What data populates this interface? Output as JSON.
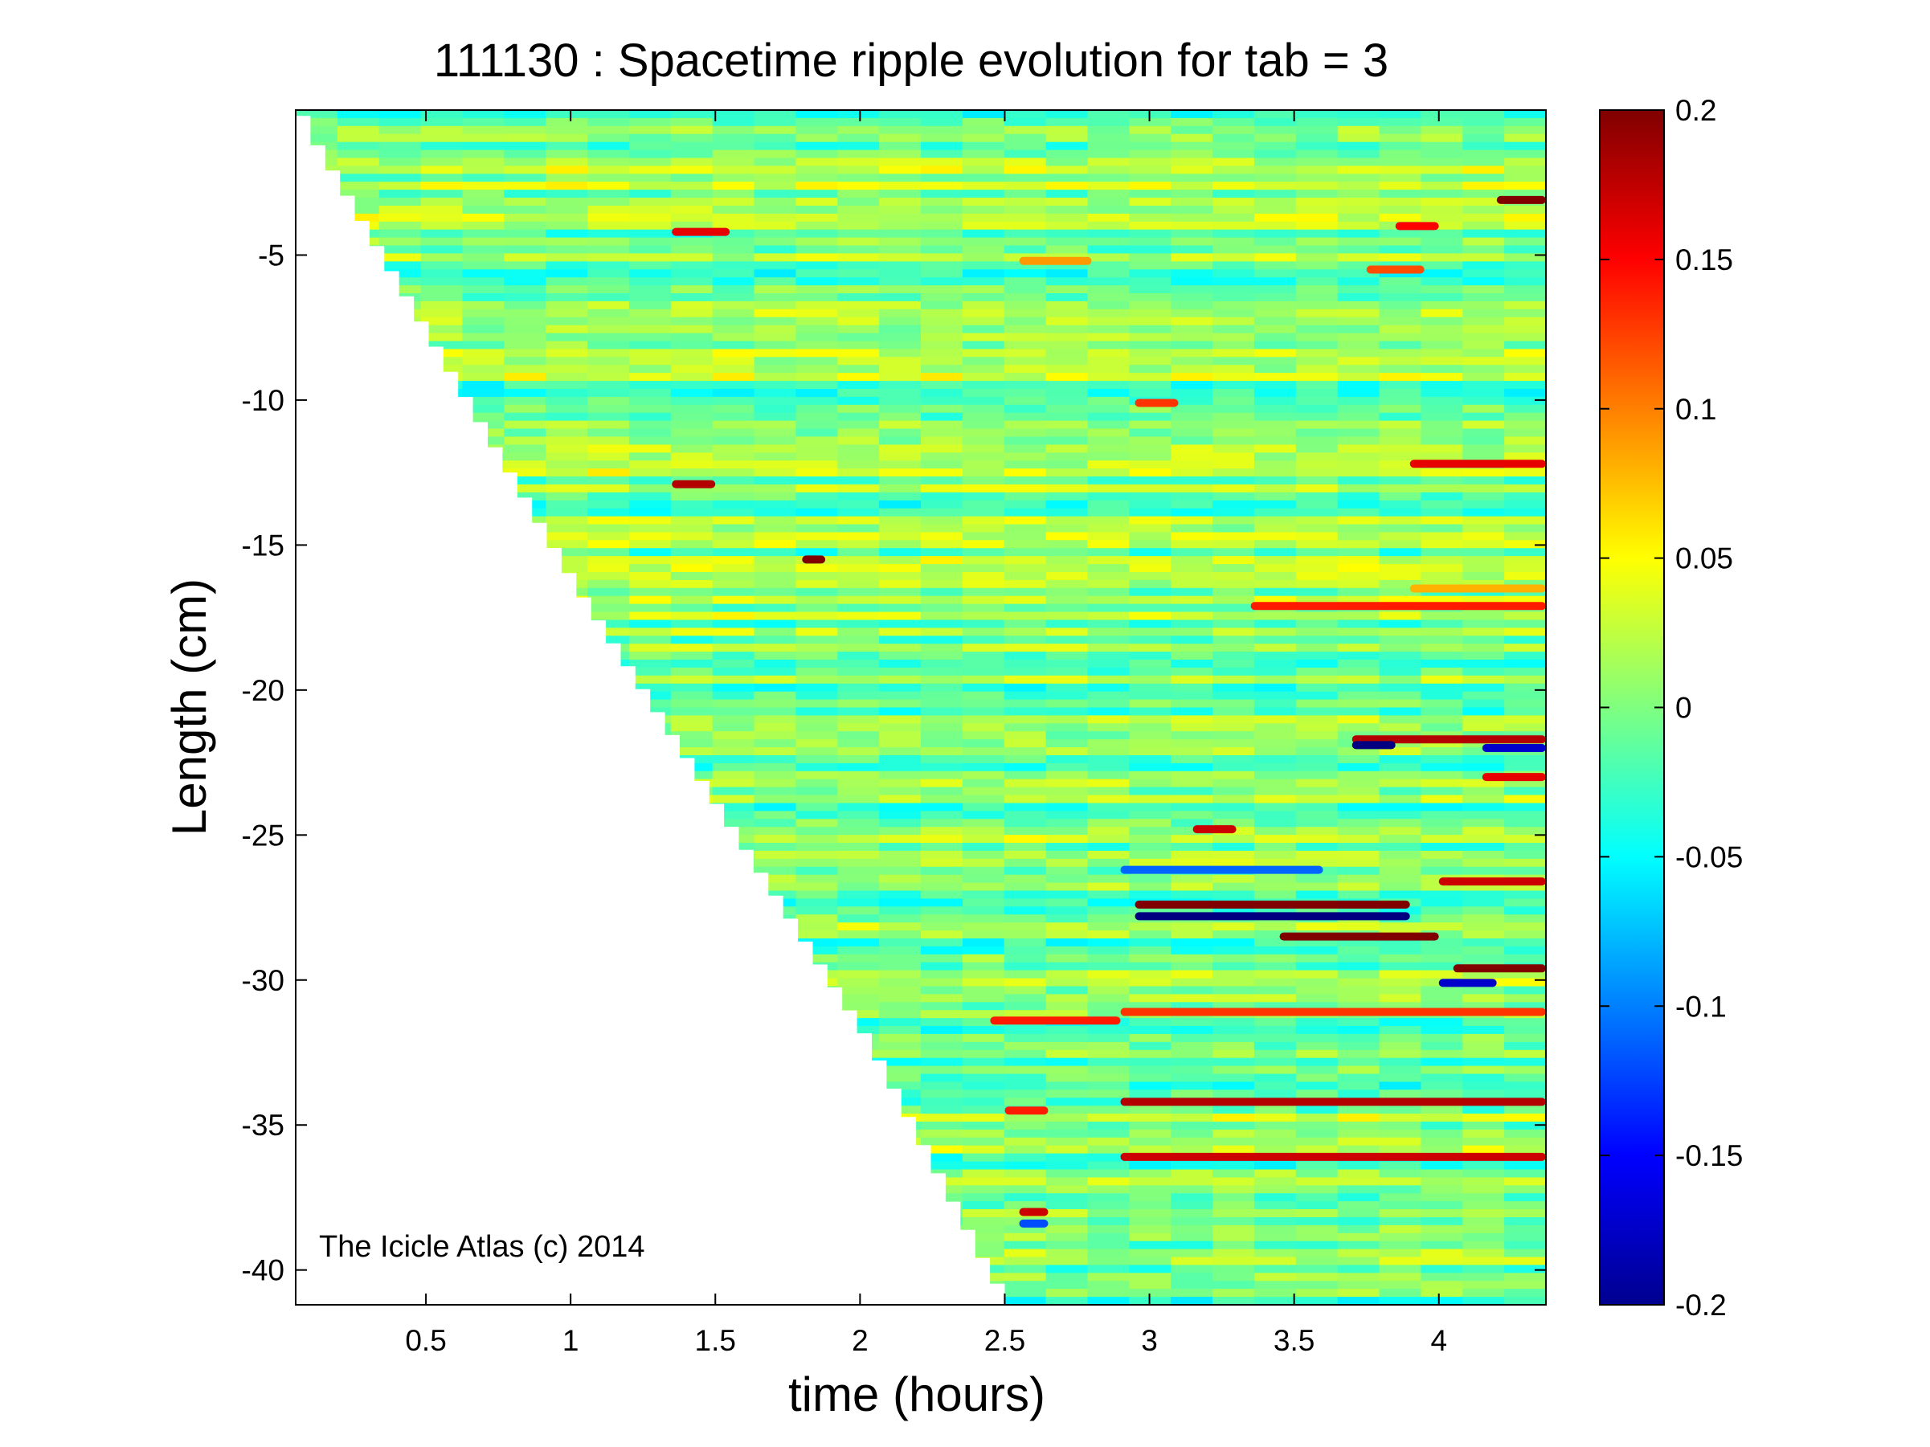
{
  "chart_data": {
    "type": "heatmap",
    "title": "111130 : Spacetime ripple evolution for tab = 3",
    "xlabel": "time (hours)",
    "ylabel": "Length (cm)",
    "xlim": [
      0.05,
      4.37
    ],
    "ylim": [
      -41.2,
      0
    ],
    "xticks": [
      0.5,
      1,
      1.5,
      2,
      2.5,
      3,
      3.5,
      4
    ],
    "xtick_labels": [
      "0.5",
      "1",
      "1.5",
      "2",
      "2.5",
      "3",
      "3.5",
      "4"
    ],
    "yticks": [
      -5,
      -10,
      -15,
      -20,
      -25,
      -30,
      -35,
      -40
    ],
    "ytick_labels": [
      "-5",
      "-10",
      "-15",
      "-20",
      "-25",
      "-30",
      "-35",
      "-40"
    ],
    "colorbar": {
      "colormap": "jet",
      "clim": [
        -0.2,
        0.2
      ],
      "ticks": [
        0.2,
        0.15,
        0.1,
        0.05,
        0,
        -0.05,
        -0.1,
        -0.15,
        -0.2
      ],
      "tick_labels": [
        "0.2",
        "0.15",
        "0.1",
        "0.05",
        "0",
        "-0.05",
        "-0.1",
        "-0.15",
        "-0.2"
      ]
    },
    "grid": false,
    "growth_front": {
      "description_points": [
        [
          0.05,
          -0.2
        ],
        [
          0.1,
          -1.2
        ],
        [
          1.0,
          -16.5
        ],
        [
          2.0,
          -32.0
        ],
        [
          2.43,
          -40.2
        ],
        [
          2.5,
          -41.2
        ]
      ]
    },
    "features": [
      {
        "t": [
          1.35,
          1.55
        ],
        "len": -4.2,
        "value": 0.16
      },
      {
        "t": [
          2.55,
          2.8
        ],
        "len": -5.2,
        "value": 0.09
      },
      {
        "t": [
          3.85,
          4.0
        ],
        "len": -4.0,
        "value": 0.15
      },
      {
        "t": [
          3.75,
          3.95
        ],
        "len": -5.5,
        "value": 0.12
      },
      {
        "t": [
          4.2,
          4.37
        ],
        "len": -3.1,
        "value": 0.2
      },
      {
        "t": [
          2.95,
          3.1
        ],
        "len": -10.1,
        "value": 0.13
      },
      {
        "t": [
          3.9,
          4.37
        ],
        "len": -12.2,
        "value": 0.16
      },
      {
        "t": [
          1.35,
          1.5
        ],
        "len": -12.9,
        "value": 0.18
      },
      {
        "t": [
          1.8,
          1.88
        ],
        "len": -15.5,
        "value": 0.2
      },
      {
        "t": [
          3.9,
          4.37
        ],
        "len": -16.5,
        "value": 0.08
      },
      {
        "t": [
          3.35,
          4.37
        ],
        "len": -17.1,
        "value": 0.14
      },
      {
        "t": [
          3.7,
          4.37
        ],
        "len": -21.7,
        "value": 0.18
      },
      {
        "t": [
          3.7,
          3.85
        ],
        "len": -21.9,
        "value": -0.2
      },
      {
        "t": [
          4.15,
          4.37
        ],
        "len": -22.0,
        "value": -0.17
      },
      {
        "t": [
          4.15,
          4.37
        ],
        "len": -23.0,
        "value": 0.16
      },
      {
        "t": [
          3.15,
          3.3
        ],
        "len": -24.8,
        "value": 0.17
      },
      {
        "t": [
          2.9,
          3.6
        ],
        "len": -26.2,
        "value": -0.11
      },
      {
        "t": [
          4.0,
          4.37
        ],
        "len": -26.6,
        "value": 0.17
      },
      {
        "t": [
          2.95,
          3.9
        ],
        "len": -27.4,
        "value": 0.2
      },
      {
        "t": [
          2.95,
          3.9
        ],
        "len": -27.8,
        "value": -0.2
      },
      {
        "t": [
          3.45,
          4.0
        ],
        "len": -28.5,
        "value": 0.2
      },
      {
        "t": [
          4.05,
          4.37
        ],
        "len": -29.6,
        "value": 0.2
      },
      {
        "t": [
          4.0,
          4.2
        ],
        "len": -30.1,
        "value": -0.17
      },
      {
        "t": [
          2.9,
          4.37
        ],
        "len": -31.1,
        "value": 0.13
      },
      {
        "t": [
          2.45,
          2.9
        ],
        "len": -31.4,
        "value": 0.14
      },
      {
        "t": [
          2.9,
          4.37
        ],
        "len": -34.2,
        "value": 0.18
      },
      {
        "t": [
          2.5,
          2.65
        ],
        "len": -34.5,
        "value": 0.14
      },
      {
        "t": [
          2.9,
          4.37
        ],
        "len": -36.1,
        "value": 0.17
      },
      {
        "t": [
          2.55,
          2.65
        ],
        "len": -38.0,
        "value": 0.17
      },
      {
        "t": [
          2.55,
          2.65
        ],
        "len": -38.4,
        "value": -0.12
      }
    ]
  },
  "annotation": "The Icicle Atlas (c) 2014",
  "colors": {
    "background": "#ffffff",
    "axis": "#000000",
    "base_green": "#7fff7f"
  }
}
